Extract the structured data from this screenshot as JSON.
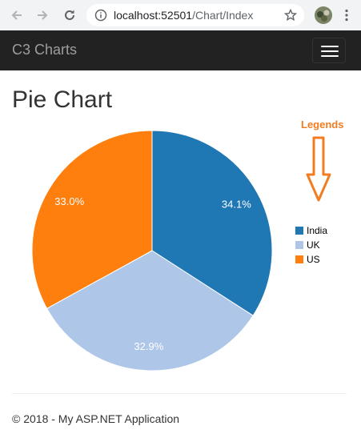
{
  "browser": {
    "url_host": "localhost:52501",
    "url_path": "/Chart/Index"
  },
  "navbar": {
    "brand": "C3 Charts"
  },
  "page": {
    "title": "Pie Chart"
  },
  "annotation": {
    "label": "Legends",
    "color": "#f47c20"
  },
  "chart_data": {
    "type": "pie",
    "categories": [
      "India",
      "UK",
      "US"
    ],
    "values": [
      34.1,
      32.9,
      33.0
    ],
    "value_labels": [
      "34.1%",
      "32.9%",
      "33.0%"
    ],
    "colors": [
      "#1f77b4",
      "#aec7e8",
      "#ff7f0e"
    ],
    "legend_position": "right"
  },
  "footer": {
    "text": "© 2018 - My ASP.NET Application"
  }
}
